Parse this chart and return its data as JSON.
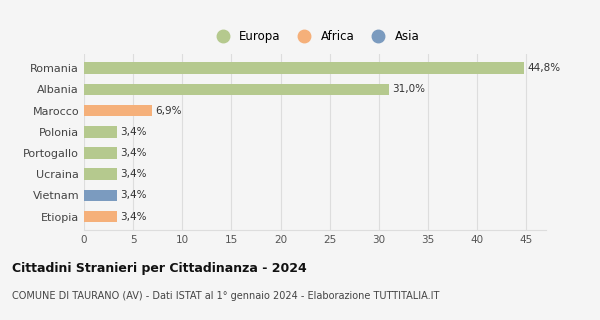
{
  "categories": [
    "Romania",
    "Albania",
    "Marocco",
    "Polonia",
    "Portogallo",
    "Ucraina",
    "Vietnam",
    "Etiopia"
  ],
  "values": [
    44.8,
    31.0,
    6.9,
    3.4,
    3.4,
    3.4,
    3.4,
    3.4
  ],
  "labels": [
    "44,8%",
    "31,0%",
    "6,9%",
    "3,4%",
    "3,4%",
    "3,4%",
    "3,4%",
    "3,4%"
  ],
  "colors": [
    "#b5c98e",
    "#b5c98e",
    "#f5b07a",
    "#b5c98e",
    "#b5c98e",
    "#b5c98e",
    "#7b9bbf",
    "#f5b07a"
  ],
  "legend": [
    {
      "label": "Europa",
      "color": "#b5c98e"
    },
    {
      "label": "Africa",
      "color": "#f5b07a"
    },
    {
      "label": "Asia",
      "color": "#7b9bbf"
    }
  ],
  "xlim": [
    0,
    47
  ],
  "xticks": [
    0,
    5,
    10,
    15,
    20,
    25,
    30,
    35,
    40,
    45
  ],
  "title": "Cittadini Stranieri per Cittadinanza - 2024",
  "subtitle": "COMUNE DI TAURANO (AV) - Dati ISTAT al 1° gennaio 2024 - Elaborazione TUTTITALIA.IT",
  "background_color": "#f5f5f5",
  "grid_color": "#dddddd"
}
